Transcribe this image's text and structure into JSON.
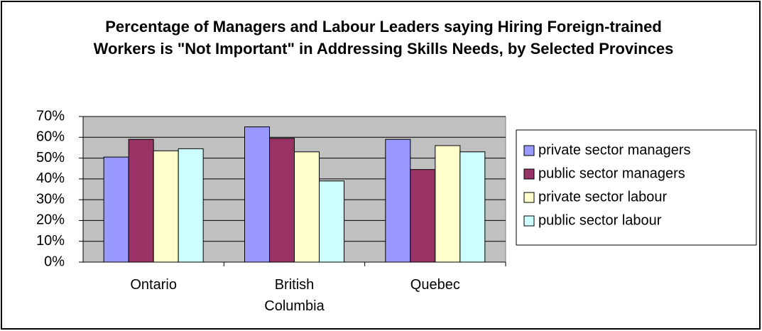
{
  "chart_data": {
    "type": "bar",
    "title": "Percentage of Managers and Labour Leaders saying Hiring Foreign-trained Workers is \"Not Important\" in Addressing Skills Needs, by Selected Provinces",
    "categories": [
      "Ontario",
      "British Columbia",
      "Quebec"
    ],
    "series": [
      {
        "name": "private sector managers",
        "color": "#9999ff",
        "values": [
          50.5,
          65,
          59
        ]
      },
      {
        "name": "public sector managers",
        "color": "#993366",
        "values": [
          59,
          59.5,
          44.5
        ]
      },
      {
        "name": "private sector labour",
        "color": "#ffffcc",
        "values": [
          53.5,
          53,
          56
        ]
      },
      {
        "name": "public sector labour",
        "color": "#ccffff",
        "values": [
          54.5,
          39,
          53
        ]
      }
    ],
    "ylim": [
      0,
      70
    ],
    "yticks": [
      {
        "value": 0,
        "label": "0%"
      },
      {
        "value": 10,
        "label": "10%"
      },
      {
        "value": 20,
        "label": "20%"
      },
      {
        "value": 30,
        "label": "30%"
      },
      {
        "value": 40,
        "label": "40%"
      },
      {
        "value": 50,
        "label": "50%"
      },
      {
        "value": 60,
        "label": "60%"
      },
      {
        "value": 70,
        "label": "70%"
      }
    ],
    "grid": true,
    "legend": "right",
    "plot_background": "#c0c0c0"
  }
}
